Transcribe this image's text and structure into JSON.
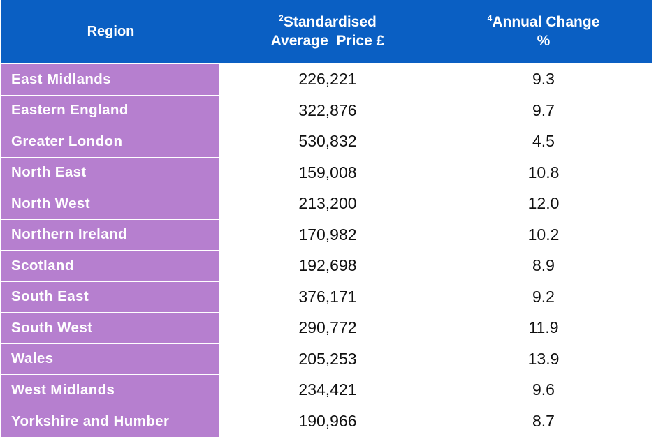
{
  "header": {
    "region": "Region",
    "price_sup": "2",
    "price_line1": "Standardised",
    "price_line2": "Average  Price £",
    "change_sup": "4",
    "change_line1": "Annual Change",
    "change_line2": "%"
  },
  "colors": {
    "header_bg": "#0a5fc3",
    "region_bg": "#b67fcf"
  },
  "chart_data": {
    "type": "table",
    "columns": [
      "Region",
      "Standardised Average Price £",
      "Annual Change %"
    ],
    "rows": [
      {
        "region": "East Midlands",
        "price": "226,221",
        "change": "9.3"
      },
      {
        "region": "Eastern England",
        "price": "322,876",
        "change": "9.7"
      },
      {
        "region": "Greater London",
        "price": "530,832",
        "change": "4.5"
      },
      {
        "region": "North East",
        "price": "159,008",
        "change": "10.8"
      },
      {
        "region": "North West",
        "price": "213,200",
        "change": "12.0"
      },
      {
        "region": "Northern Ireland",
        "price": "170,982",
        "change": "10.2"
      },
      {
        "region": "Scotland",
        "price": "192,698",
        "change": "8.9"
      },
      {
        "region": "South East",
        "price": "376,171",
        "change": "9.2"
      },
      {
        "region": "South West",
        "price": "290,772",
        "change": "11.9"
      },
      {
        "region": "Wales",
        "price": "205,253",
        "change": "13.9"
      },
      {
        "region": "West Midlands",
        "price": "234,421",
        "change": "9.6"
      },
      {
        "region": "Yorkshire and Humber",
        "price": "190,966",
        "change": "8.7"
      }
    ]
  }
}
